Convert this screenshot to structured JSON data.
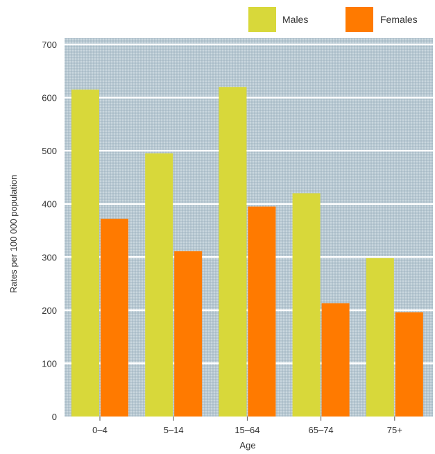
{
  "chart_data": {
    "type": "bar",
    "categories": [
      "0–4",
      "5–14",
      "15–64",
      "65–74",
      "75+"
    ],
    "series": [
      {
        "name": "Males",
        "values": [
          615,
          495,
          620,
          420,
          298
        ],
        "color": "#d8d83a"
      },
      {
        "name": "Females",
        "values": [
          372,
          311,
          395,
          213,
          196
        ],
        "color": "#ff7a00"
      }
    ],
    "xlabel": "Age",
    "ylabel": "Rates per 100 000 population",
    "ylim": [
      0,
      700
    ],
    "yticks": [
      0,
      100,
      200,
      300,
      400,
      500,
      600,
      700
    ],
    "grid": true,
    "legend_position": "top-right",
    "plot_background": "#b3c6d1",
    "grid_color": "#ffffff"
  }
}
